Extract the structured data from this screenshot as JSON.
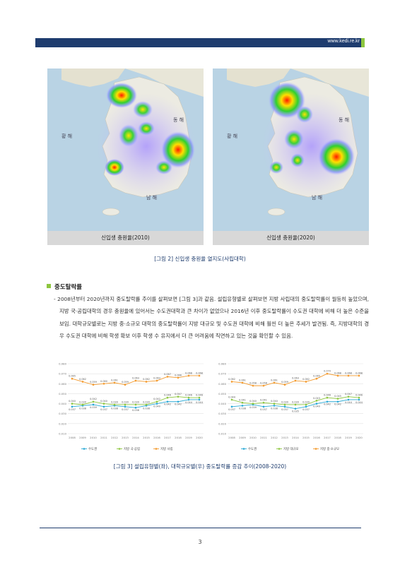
{
  "header": {
    "url": "www.kedi.re.kr"
  },
  "figure2": {
    "maps": [
      {
        "caption": "신입생 충원율(2010)",
        "sea_west": "황 해",
        "sea_east": "동 해",
        "sea_south": "남 해"
      },
      {
        "caption": "신입생 충원율(2020)",
        "sea_west": "황 해",
        "sea_east": "동 해",
        "sea_south": "남 해"
      }
    ],
    "title": "[그림 2] 신입생 충원율 열지도(사립대학)"
  },
  "section": {
    "heading": "중도탈락률",
    "paragraph": "- 2008년부터 2020년까지 중도탈락률 추이를 살펴보면 [그림 3]과 같음. 설립유형별로 살펴보면 지방 사립대의 중도탈락률이 월등히 높았으며, 지방 국·공립대학의 경우 충원율에 있어서는 수도권대학과 큰 차이가 없었으나 2016년 이후 중도탈락률이 수도권 대학에 비해 더 높은 수준을 보임. 대학규모별로는 지방 중·소규모 대학의 중도탈락률이 지방 대규모 및 수도권 대학에 비해 훨씬 더 높은 추세가 발견됨. 즉, 지방대학의 경우 수도권 대학에 비해 학생 확보 이후 학생 수 유지에서 더 큰 어려움에 직면하고 있는 것을 확인할 수 있음."
  },
  "figure3": {
    "title": "[그림 3] 설립유형별(좌), 대학규모별(우) 중도탈락률 증감 추이(2008-2020)"
  },
  "chart_data": [
    {
      "type": "line",
      "title": "",
      "x": [
        "2008",
        "2009",
        "2010",
        "2011",
        "2012",
        "2013",
        "2014",
        "2015",
        "2016",
        "2017",
        "2018",
        "2019",
        "2020"
      ],
      "yticks": [
        "0.080",
        "0.070",
        "0.060",
        "0.050",
        "0.040",
        "0.030",
        "0.020",
        "0.010"
      ],
      "ylim": [
        0.01,
        0.08
      ],
      "grid": true,
      "legend_position": "bottom",
      "series": [
        {
          "name": "수도권",
          "color": "#2aa9d6",
          "values": [
            0.037,
            0.038,
            0.039,
            0.037,
            0.038,
            0.037,
            0.036,
            0.038,
            0.04,
            0.042,
            0.042,
            0.044,
            0.044
          ],
          "labels": [
            "0.037",
            "0.038",
            "0.039",
            "0.037",
            "0.038",
            "0.037",
            "0.036",
            "0.038",
            "0.040",
            "0.042",
            "0.042",
            "0.044",
            "0.044"
          ]
        },
        {
          "name": "지방 국·공립",
          "color": "#8dc63f",
          "values": [
            0.04,
            0.039,
            0.042,
            0.04,
            0.039,
            0.039,
            0.039,
            0.039,
            0.042,
            0.046,
            0.047,
            0.046,
            0.046
          ],
          "labels": [
            "0.040",
            "0.039",
            "0.042",
            "0.040",
            "0.039",
            "0.039",
            "0.039",
            "0.039",
            "0.042",
            "0.046",
            "0.047",
            "0.046",
            "0.046"
          ]
        },
        {
          "name": "지방 사립",
          "color": "#f39a2e",
          "values": [
            0.065,
            0.062,
            0.059,
            0.06,
            0.061,
            0.059,
            0.063,
            0.062,
            0.063,
            0.067,
            0.066,
            0.068,
            0.068
          ],
          "labels": [
            "0.065",
            "0.062",
            "0.059",
            "0.060",
            "0.061",
            "0.059",
            "0.063",
            "0.062",
            "0.063",
            "0.067",
            "0.066",
            "0.068",
            "0.068"
          ]
        }
      ]
    },
    {
      "type": "line",
      "title": "",
      "x": [
        "2008",
        "2009",
        "2010",
        "2011",
        "2012",
        "2013",
        "2014",
        "2015",
        "2016",
        "2017",
        "2018",
        "2019",
        "2020"
      ],
      "yticks": [
        "0.080",
        "0.070",
        "0.060",
        "0.050",
        "0.040",
        "0.030",
        "0.020",
        "0.010"
      ],
      "ylim": [
        0.01,
        0.08
      ],
      "grid": true,
      "legend_position": "bottom",
      "series": [
        {
          "name": "수도권",
          "color": "#2aa9d6",
          "values": [
            0.037,
            0.038,
            0.039,
            0.037,
            0.038,
            0.037,
            0.035,
            0.037,
            0.04,
            0.042,
            0.042,
            0.044,
            0.044
          ],
          "labels": [
            "0.037",
            "0.038",
            "0.039",
            "0.037",
            "0.038",
            "0.037",
            "0.035",
            "0.037",
            "0.040",
            "0.042",
            "0.042",
            "0.044",
            "0.044"
          ]
        },
        {
          "name": "지방 대규모",
          "color": "#8dc63f",
          "values": [
            0.044,
            0.041,
            0.04,
            0.041,
            0.04,
            0.039,
            0.039,
            0.039,
            0.043,
            0.046,
            0.045,
            0.047,
            0.046
          ],
          "labels": [
            "0.044",
            "0.041",
            "0.040",
            "0.041",
            "0.040",
            "0.039",
            "0.039",
            "0.039",
            "0.043",
            "0.046",
            "0.045",
            "0.047",
            "0.046"
          ]
        },
        {
          "name": "지방 중·소규모",
          "color": "#f39a2e",
          "values": [
            0.062,
            0.061,
            0.058,
            0.058,
            0.061,
            0.059,
            0.063,
            0.062,
            0.065,
            0.07,
            0.068,
            0.068,
            0.068
          ],
          "labels": [
            "0.062",
            "0.061",
            "0.058",
            "0.058",
            "0.061",
            "0.059",
            "0.063",
            "0.062",
            "0.065",
            "0.070",
            "0.068",
            "0.068",
            "0.068"
          ]
        }
      ]
    }
  ]
}
